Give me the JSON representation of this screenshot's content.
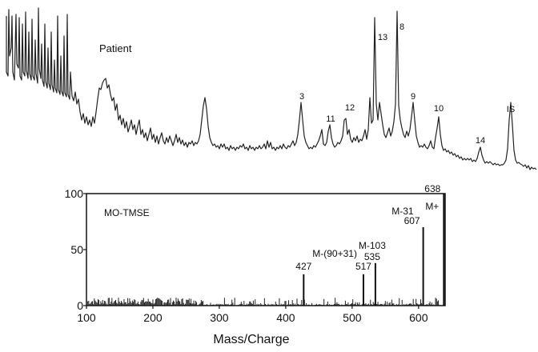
{
  "chart_data": [
    {
      "type": "line",
      "title": "Patient",
      "peak_labels": [
        "3",
        "11",
        "12",
        "13",
        "8",
        "9",
        "10",
        "14",
        "IS"
      ],
      "grid": false,
      "axes": false
    },
    {
      "type": "bar",
      "title": "MO-TMSE",
      "xlabel": "Mass/Charge",
      "ylabel": "",
      "xlim": [
        100,
        640
      ],
      "ylim": [
        0,
        100
      ],
      "xticks": [
        100,
        200,
        300,
        400,
        500,
        600
      ],
      "yticks": [
        0,
        50,
        100
      ],
      "grid": false,
      "x": [
        427,
        517,
        535,
        607,
        638
      ],
      "values": [
        28,
        28,
        38,
        70,
        100
      ],
      "annotations": [
        {
          "text": "427",
          "x": 427
        },
        {
          "text": "M-(90+31)",
          "x": 517
        },
        {
          "text": "517",
          "x": 517
        },
        {
          "text": "M-103",
          "x": 535
        },
        {
          "text": "535",
          "x": 535
        },
        {
          "text": "M-31",
          "x": 607
        },
        {
          "text": "607",
          "x": 607
        },
        {
          "text": "638",
          "x": 638
        },
        {
          "text": "M+",
          "x": 638
        }
      ]
    }
  ]
}
